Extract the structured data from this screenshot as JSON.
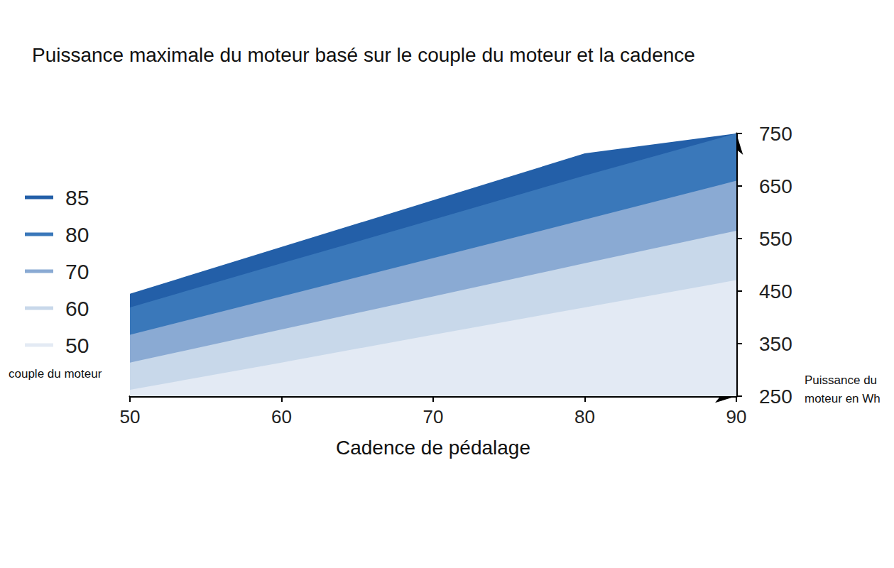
{
  "chart_data": {
    "type": "area",
    "title": "Puissance maximale du moteur basé sur le couple du moteur et la cadence",
    "x_label": "Cadence de pédalage",
    "y_label": "Puissance du moteur en Wh",
    "legend_title": "couple du moteur",
    "x": [
      50,
      60,
      70,
      80,
      90
    ],
    "series": [
      {
        "name": "85",
        "color": "#235fa8",
        "values": [
          445,
          534,
          623,
          712,
          750
        ]
      },
      {
        "name": "80",
        "color": "#3a78ba",
        "values": [
          419,
          503,
          586,
          670,
          750
        ]
      },
      {
        "name": "70",
        "color": "#8aaad3",
        "values": [
          367,
          440,
          513,
          586,
          660
        ]
      },
      {
        "name": "60",
        "color": "#c8d8ea",
        "values": [
          314,
          377,
          440,
          503,
          565
        ]
      },
      {
        "name": "50",
        "color": "#e3eaf4",
        "values": [
          262,
          314,
          367,
          419,
          471
        ]
      }
    ],
    "xlim": [
      50,
      90
    ],
    "xticks": [
      50,
      60,
      70,
      80,
      90
    ],
    "ylim": [
      250,
      750
    ],
    "yticks": [
      250,
      350,
      450,
      550,
      650,
      750
    ],
    "grid": false,
    "legend": "left"
  }
}
